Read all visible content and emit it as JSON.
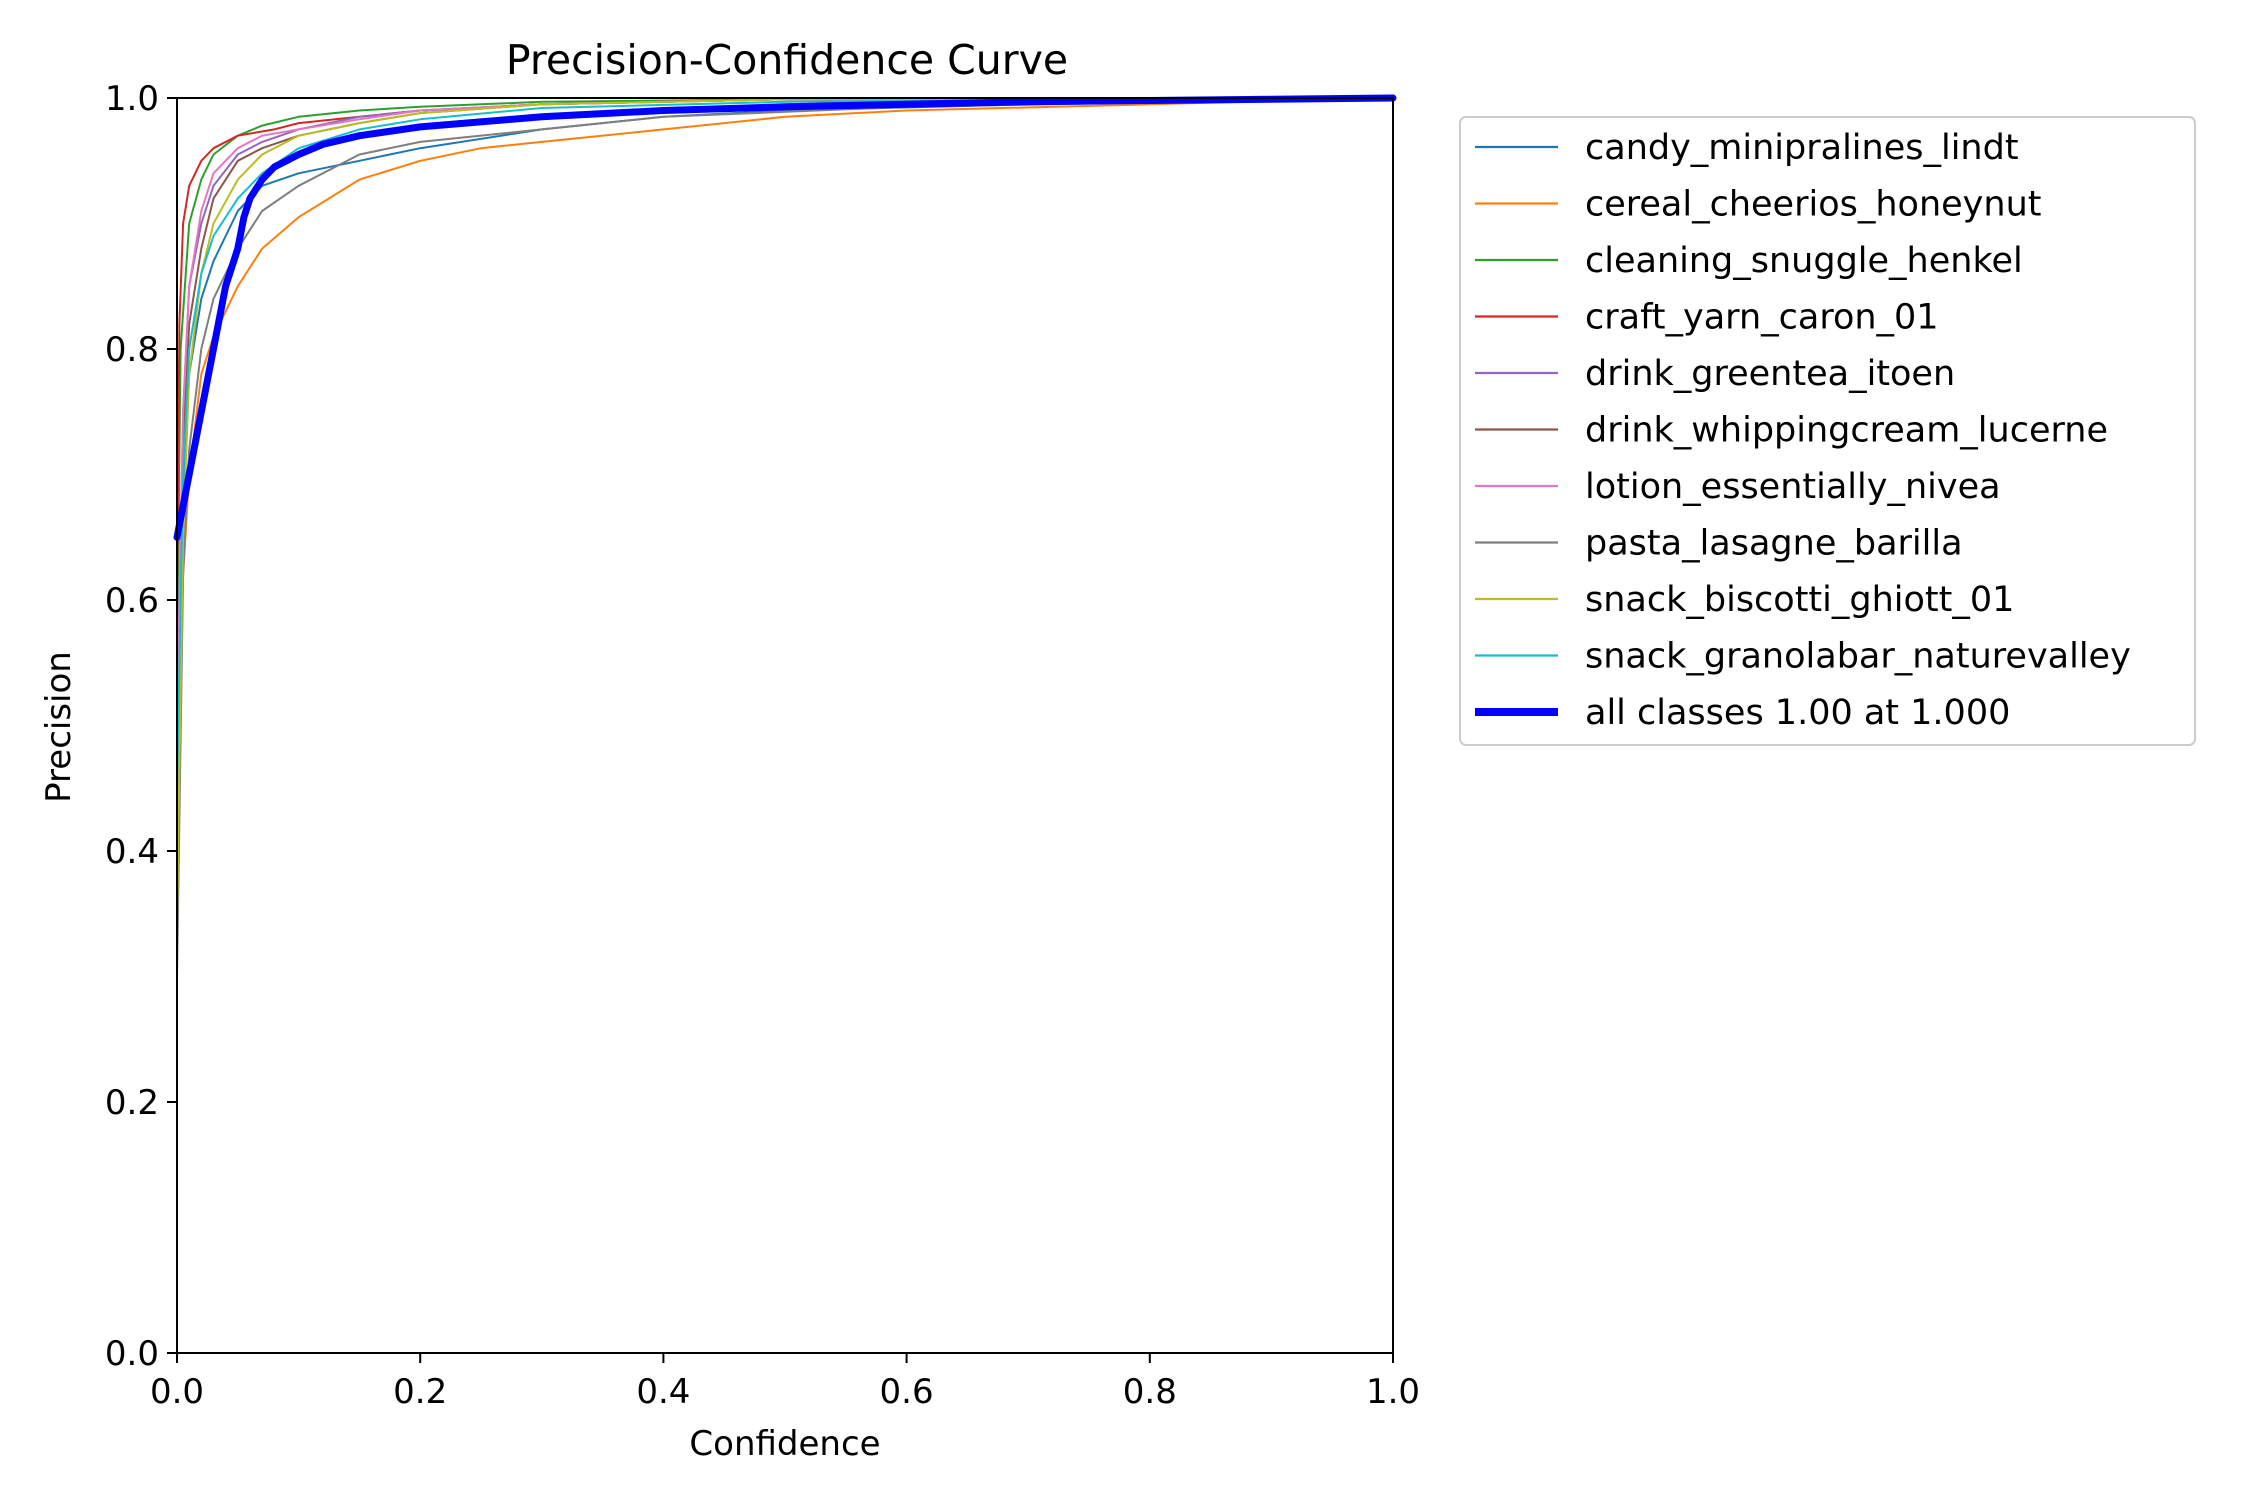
{
  "chart_data": {
    "type": "line",
    "title": "Precision-Confidence Curve",
    "xlabel": "Confidence",
    "ylabel": "Precision",
    "xlim": [
      0.0,
      1.0
    ],
    "ylim": [
      0.0,
      1.0
    ],
    "x_ticks": [
      "0.0",
      "0.2",
      "0.4",
      "0.6",
      "0.8",
      "1.0"
    ],
    "y_ticks": [
      "0.0",
      "0.2",
      "0.4",
      "0.6",
      "0.8",
      "1.0"
    ],
    "grid": false,
    "legend_position": "outside-right",
    "series": [
      {
        "name": "candy_minipralines_lindt",
        "color": "#1f77b4",
        "width": 2,
        "x": [
          0.0,
          0.005,
          0.01,
          0.02,
          0.03,
          0.05,
          0.07,
          0.1,
          0.15,
          0.2,
          0.3,
          0.4,
          0.5,
          0.7,
          1.0
        ],
        "y": [
          0.45,
          0.68,
          0.78,
          0.84,
          0.87,
          0.91,
          0.93,
          0.94,
          0.95,
          0.96,
          0.975,
          0.985,
          0.99,
          0.995,
          1.0
        ]
      },
      {
        "name": "cereal_cheerios_honeynut",
        "color": "#ff7f0e",
        "width": 2,
        "x": [
          0.0,
          0.005,
          0.01,
          0.02,
          0.03,
          0.05,
          0.07,
          0.1,
          0.15,
          0.2,
          0.25,
          0.3,
          0.4,
          0.5,
          0.6,
          0.8,
          1.0
        ],
        "y": [
          0.4,
          0.62,
          0.7,
          0.78,
          0.81,
          0.85,
          0.88,
          0.905,
          0.935,
          0.95,
          0.96,
          0.965,
          0.975,
          0.985,
          0.99,
          0.995,
          1.0
        ]
      },
      {
        "name": "cleaning_snuggle_henkel",
        "color": "#2ca02c",
        "width": 2,
        "x": [
          0.0,
          0.003,
          0.01,
          0.02,
          0.03,
          0.05,
          0.07,
          0.1,
          0.15,
          0.2,
          0.3,
          0.5,
          1.0
        ],
        "y": [
          0.55,
          0.8,
          0.9,
          0.935,
          0.955,
          0.97,
          0.978,
          0.985,
          0.99,
          0.993,
          0.997,
          0.999,
          1.0
        ]
      },
      {
        "name": "craft_yarn_caron_01",
        "color": "#d62728",
        "width": 2,
        "x": [
          0.0,
          0.002,
          0.005,
          0.01,
          0.02,
          0.03,
          0.05,
          0.08,
          0.1,
          0.15,
          0.2,
          0.3,
          0.5,
          1.0
        ],
        "y": [
          0.6,
          0.82,
          0.9,
          0.93,
          0.95,
          0.96,
          0.97,
          0.975,
          0.98,
          0.985,
          0.99,
          0.995,
          0.999,
          1.0
        ]
      },
      {
        "name": "drink_greentea_itoen",
        "color": "#9467bd",
        "width": 2,
        "x": [
          0.0,
          0.005,
          0.01,
          0.02,
          0.03,
          0.05,
          0.07,
          0.1,
          0.15,
          0.2,
          0.3,
          0.5,
          1.0
        ],
        "y": [
          0.5,
          0.75,
          0.85,
          0.9,
          0.93,
          0.955,
          0.965,
          0.975,
          0.985,
          0.99,
          0.995,
          0.999,
          1.0
        ]
      },
      {
        "name": "drink_whippingcream_lucerne",
        "color": "#8c564b",
        "width": 2,
        "x": [
          0.0,
          0.005,
          0.01,
          0.02,
          0.03,
          0.05,
          0.07,
          0.1,
          0.15,
          0.2,
          0.3,
          0.5,
          1.0
        ],
        "y": [
          0.5,
          0.72,
          0.82,
          0.88,
          0.92,
          0.95,
          0.96,
          0.97,
          0.98,
          0.988,
          0.995,
          0.999,
          1.0
        ]
      },
      {
        "name": "lotion_essentially_nivea",
        "color": "#e377c2",
        "width": 2,
        "x": [
          0.0,
          0.005,
          0.01,
          0.02,
          0.03,
          0.05,
          0.07,
          0.1,
          0.15,
          0.2,
          0.3,
          0.5,
          1.0
        ],
        "y": [
          0.5,
          0.75,
          0.85,
          0.91,
          0.94,
          0.96,
          0.97,
          0.975,
          0.983,
          0.99,
          0.995,
          0.999,
          1.0
        ]
      },
      {
        "name": "pasta_lasagne_barilla",
        "color": "#7f7f7f",
        "width": 2,
        "x": [
          0.0,
          0.005,
          0.01,
          0.02,
          0.03,
          0.05,
          0.07,
          0.1,
          0.15,
          0.2,
          0.3,
          0.4,
          0.6,
          1.0
        ],
        "y": [
          0.3,
          0.62,
          0.72,
          0.8,
          0.84,
          0.88,
          0.91,
          0.93,
          0.955,
          0.965,
          0.975,
          0.985,
          0.993,
          1.0
        ]
      },
      {
        "name": "snack_biscotti_ghiott_01",
        "color": "#bcbd22",
        "width": 2,
        "x": [
          0.0,
          0.005,
          0.01,
          0.02,
          0.03,
          0.05,
          0.07,
          0.1,
          0.15,
          0.2,
          0.3,
          0.5,
          1.0
        ],
        "y": [
          0.35,
          0.65,
          0.78,
          0.86,
          0.9,
          0.935,
          0.955,
          0.97,
          0.98,
          0.988,
          0.995,
          0.999,
          1.0
        ]
      },
      {
        "name": "snack_granolabar_naturevalley",
        "color": "#17becf",
        "width": 2,
        "x": [
          0.0,
          0.005,
          0.01,
          0.02,
          0.03,
          0.05,
          0.07,
          0.1,
          0.15,
          0.2,
          0.3,
          0.5,
          0.8,
          1.0
        ],
        "y": [
          0.45,
          0.7,
          0.8,
          0.86,
          0.89,
          0.92,
          0.94,
          0.96,
          0.975,
          0.983,
          0.992,
          0.997,
          0.999,
          1.0
        ]
      },
      {
        "name": "all classes 1.00 at 1.000",
        "color": "#0000ff",
        "width": 7,
        "x": [
          0.0,
          0.02,
          0.04,
          0.05,
          0.055,
          0.06,
          0.07,
          0.08,
          0.1,
          0.12,
          0.15,
          0.2,
          0.3,
          0.4,
          0.5,
          0.6,
          0.7,
          0.8,
          0.9,
          1.0
        ],
        "y": [
          0.65,
          0.75,
          0.85,
          0.88,
          0.905,
          0.92,
          0.935,
          0.945,
          0.955,
          0.963,
          0.97,
          0.977,
          0.985,
          0.99,
          0.993,
          0.995,
          0.997,
          0.998,
          0.999,
          1.0
        ]
      }
    ]
  }
}
